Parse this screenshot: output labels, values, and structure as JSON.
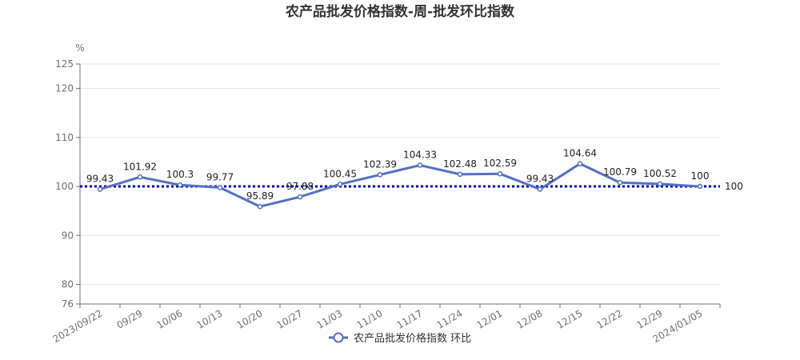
{
  "chart_data": {
    "type": "line",
    "title": "农产品批发价格指数-周-批发环比指数",
    "ylabel": "%",
    "ylim": [
      76,
      125
    ],
    "yticks": [
      76,
      80,
      90,
      100,
      110,
      120,
      125
    ],
    "categories": [
      "2023/09/22",
      "09/29",
      "10/06",
      "10/13",
      "10/20",
      "10/27",
      "11/03",
      "11/10",
      "11/17",
      "11/24",
      "12/01",
      "12/08",
      "12/15",
      "12/22",
      "12/29",
      "2024/01/05"
    ],
    "series": [
      {
        "name": "农产品批发价格指数 环比",
        "values": [
          99.43,
          101.92,
          100.3,
          99.77,
          95.89,
          97.88,
          100.45,
          102.39,
          104.33,
          102.48,
          102.59,
          99.43,
          104.64,
          100.79,
          100.52,
          100
        ],
        "color": "#5470c6"
      }
    ],
    "reference_line": {
      "value": 100,
      "label": "100",
      "color": "#0000cc"
    },
    "grid": true,
    "legend_position": "bottom"
  }
}
